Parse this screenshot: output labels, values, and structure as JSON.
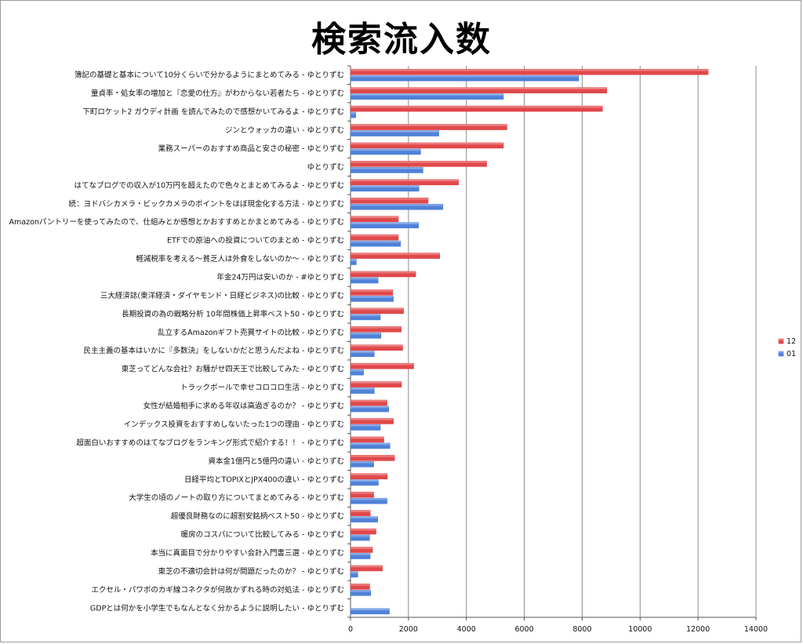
{
  "chart_data": {
    "type": "bar",
    "orientation": "horizontal",
    "title": "検索流入数",
    "xlim": [
      0,
      14000
    ],
    "x_ticks": [
      0,
      2000,
      4000,
      6000,
      8000,
      10000,
      12000,
      14000
    ],
    "grid": true,
    "legend_position": "right",
    "categories": [
      "簿記の基礎と基本について10分くらいで分かるようにまとめてみる - ゆとりずむ",
      "童貞率・処女率の増加と『恋愛の仕方』がわからない若者たち - ゆとりずむ",
      "下町ロケット2 ガウディ計画 を読んでみたので感想かいてみるよ - ゆとりずむ",
      "ジンとウォッカの違い - ゆとりずむ",
      "業務スーパーのおすすめ商品と安さの秘密 - ゆとりずむ",
      "ゆとりずむ",
      "はてなブログでの収入が10万円を超えたので色々とまとめてみるよ - ゆとりずむ",
      "続：ヨドバシカメラ・ビックカメラのポイントをほぼ現金化する方法 - ゆとりずむ",
      "Amazonパントリーを使ってみたので、仕組みとか感想とかおすすめとかまとめてみる - ゆとりずむ",
      "ETFでの原油への投資についてのまとめ - ゆとりずむ",
      "軽減税率を考える〜貧乏人は外食をしないのか〜 - ゆとりずむ",
      "年金24万円は安いのか - #ゆとりずむ",
      "三大経済誌(東洋経済・ダイヤモンド・日経ビジネス)の比較 - ゆとりずむ",
      "長期投資の為の戦略分析 10年間株価上昇率ベスト50 - ゆとりずむ",
      "乱立するAmazonギフト売買サイトの比較 - ゆとりずむ",
      "民主主義の基本はいかに『多数決』をしないかだと思うんだよね - ゆとりずむ",
      "東芝ってどんな会社？お騒がせ四天王で比較してみた - ゆとりずむ",
      "トラックボールで幸せコロコロ生活 - ゆとりずむ",
      "女性が結婚相手に求める年収は高過ぎるのか？ - ゆとりずむ",
      "インデックス投資をおすすめしないたった1つの理由 - ゆとりずむ",
      "超面白いおすすめのはてなブログをランキング形式で紹介する！！ - ゆとりずむ",
      "資本金1億円と5億円の違い - ゆとりずむ",
      "日経平均とTOPIXとJPX400の違い - ゆとりずむ",
      "大学生の頃のノートの取り方についてまとめてみる - ゆとりずむ",
      "超優良財務なのに超割安銘柄ベスト50 - ゆとりずむ",
      "暖房のコスパについて比較してみる - ゆとりずむ",
      "本当に真面目で分かりやすい会計入門書三選 - ゆとりずむ",
      "東芝の不適切会計は何が問題だったのか？ - ゆとりずむ",
      "エクセル・パワポのカギ線コネクタが何故かずれる時の対処法 - ゆとりずむ",
      "GDPとは何かを小学生でもなんとなく分かるように説明したい - ゆとりずむ"
    ],
    "series": [
      {
        "name": "12",
        "color": "#e0484a",
        "values": [
          12350,
          8850,
          8700,
          5400,
          5280,
          4700,
          3730,
          2680,
          1650,
          1650,
          3080,
          2250,
          1460,
          1830,
          1750,
          1800,
          2180,
          1760,
          1260,
          1480,
          1150,
          1520,
          1270,
          800,
          680,
          880,
          760,
          1100,
          660,
          0
        ]
      },
      {
        "name": "01",
        "color": "#4f81d8",
        "values": [
          7880,
          5280,
          180,
          3050,
          2420,
          2500,
          2360,
          3190,
          2350,
          1730,
          200,
          950,
          1480,
          1030,
          1050,
          820,
          450,
          820,
          1320,
          1030,
          1360,
          800,
          960,
          1260,
          940,
          660,
          680,
          250,
          700,
          1340
        ]
      }
    ]
  }
}
